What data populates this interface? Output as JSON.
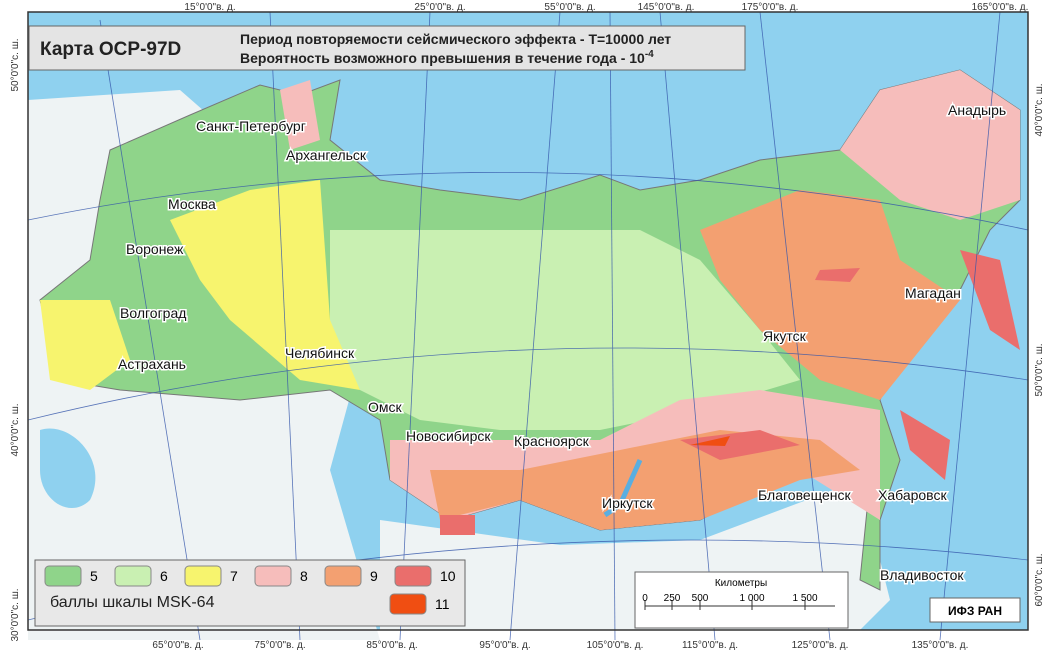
{
  "header": {
    "title": "Карта ОСР-97D",
    "line1": "Период повторяемости сейсмического эффекта - Т=10000 лет",
    "line2": "Вероятность возможного превышения в течение года - 10",
    "line2_exp": "-4"
  },
  "cities": [
    "Санкт-Петербург",
    "Архангельск",
    "Москва",
    "Воронеж",
    "Волгоград",
    "Астрахань",
    "Челябинск",
    "Омск",
    "Новосибирск",
    "Красноярск",
    "Иркутск",
    "Якутск",
    "Магадан",
    "Анадырь",
    "Благовещенск",
    "Хабаровск",
    "Владивосток"
  ],
  "legend": {
    "items": [
      {
        "label": 5,
        "color": "#8fd48a"
      },
      {
        "label": 6,
        "color": "#c9f0b2"
      },
      {
        "label": 7,
        "color": "#f7f46e"
      },
      {
        "label": 8,
        "color": "#f6bdbb"
      },
      {
        "label": 9,
        "color": "#f3a071"
      },
      {
        "label": 10,
        "color": "#ea6e6c"
      },
      {
        "label": 11,
        "color": "#f04e12"
      }
    ],
    "caption": "баллы шкалы MSK-64"
  },
  "scale": {
    "title": "Километры",
    "ticks": [
      "0",
      "250",
      "500",
      "1 000",
      "1 500"
    ]
  },
  "credit": "ИФЗ РАН",
  "graticule": {
    "top": [
      "15°0'0\"в. д.",
      "25°0'0\"в. д.",
      "55°0'0\"в. д.",
      "145°0'0\"в. д.",
      "175°0'0\"в. д.",
      "165°0'0\"в. д."
    ],
    "bottom": [
      "65°0'0\"в. д.",
      "75°0'0\"в. д.",
      "85°0'0\"в. д.",
      "95°0'0\"в. д.",
      "105°0'0\"в. д.",
      "115°0'0\"в. д.",
      "125°0'0\"в. д.",
      "135°0'0\"в. д."
    ],
    "left": [
      "50°0'0\"с. ш.",
      "40°0'0\"с. ш.",
      "30°0'0\"с. ш."
    ],
    "right": [
      "60°0'0\"с. ш.",
      "50°0'0\"с. ш.",
      "40°0'0\"с. ш."
    ]
  }
}
